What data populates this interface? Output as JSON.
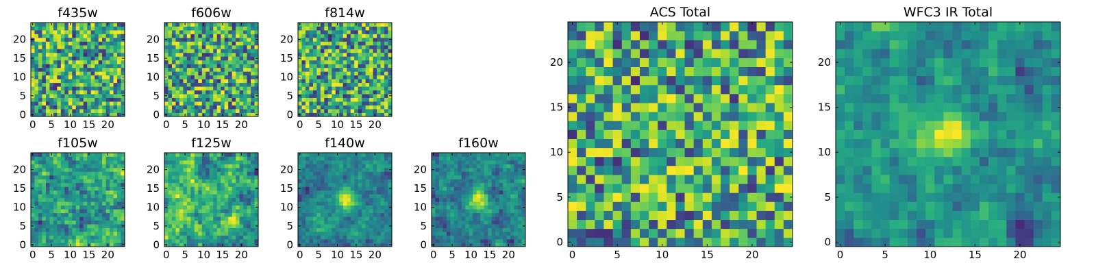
{
  "chart_data": [
    {
      "type": "heatmap",
      "title": "f435w",
      "xlim": [
        -0.5,
        24.5
      ],
      "ylim": [
        -0.5,
        24.5
      ],
      "xticks": [
        0,
        5,
        10,
        15,
        20
      ],
      "yticks": [
        0,
        5,
        10,
        15,
        20
      ],
      "colormap": "viridis",
      "pattern": "noise",
      "seed": 11
    },
    {
      "type": "heatmap",
      "title": "f606w",
      "xlim": [
        -0.5,
        24.5
      ],
      "ylim": [
        -0.5,
        24.5
      ],
      "xticks": [
        0,
        5,
        10,
        15,
        20
      ],
      "yticks": [
        0,
        5,
        10,
        15,
        20
      ],
      "colormap": "viridis",
      "pattern": "noise",
      "seed": 23
    },
    {
      "type": "heatmap",
      "title": "f814w",
      "xlim": [
        -0.5,
        24.5
      ],
      "ylim": [
        -0.5,
        24.5
      ],
      "xticks": [
        0,
        5,
        10,
        15,
        20
      ],
      "yticks": [
        0,
        5,
        10,
        15,
        20
      ],
      "colormap": "viridis",
      "pattern": "noise",
      "seed": 37
    },
    {
      "type": "heatmap",
      "title": "f105w",
      "xlim": [
        -0.5,
        24.5
      ],
      "ylim": [
        -0.5,
        24.5
      ],
      "xticks": [
        0,
        5,
        10,
        15,
        20
      ],
      "yticks": [
        0,
        5,
        10,
        15,
        20
      ],
      "colormap": "viridis",
      "pattern": "smooth",
      "seed": 41
    },
    {
      "type": "heatmap",
      "title": "f125w",
      "xlim": [
        -0.5,
        24.5
      ],
      "ylim": [
        -0.5,
        24.5
      ],
      "xticks": [
        0,
        5,
        10,
        15,
        20
      ],
      "yticks": [
        0,
        5,
        10,
        15,
        20
      ],
      "colormap": "viridis",
      "pattern": "smooth",
      "seed": 53
    },
    {
      "type": "heatmap",
      "title": "f140w",
      "xlim": [
        -0.5,
        24.5
      ],
      "ylim": [
        -0.5,
        24.5
      ],
      "xticks": [
        0,
        5,
        10,
        15,
        20
      ],
      "yticks": [
        0,
        5,
        10,
        15,
        20
      ],
      "colormap": "viridis",
      "pattern": "smooth",
      "seed": 67,
      "peak": [
        12,
        12
      ]
    },
    {
      "type": "heatmap",
      "title": "f160w",
      "xlim": [
        -0.5,
        24.5
      ],
      "ylim": [
        -0.5,
        24.5
      ],
      "xticks": [
        0,
        5,
        10,
        15,
        20
      ],
      "yticks": [
        0,
        5,
        10,
        15,
        20
      ],
      "colormap": "viridis",
      "pattern": "smooth",
      "seed": 79,
      "peak": [
        12,
        12
      ]
    },
    {
      "type": "heatmap",
      "title": "ACS Total",
      "xlim": [
        -0.5,
        24.5
      ],
      "ylim": [
        -0.5,
        24.5
      ],
      "xticks": [
        0,
        5,
        10,
        15,
        20
      ],
      "yticks": [
        0,
        5,
        10,
        15,
        20
      ],
      "colormap": "viridis",
      "pattern": "noise",
      "seed": 97
    },
    {
      "type": "heatmap",
      "title": "WFC3 IR Total",
      "xlim": [
        -0.5,
        24.5
      ],
      "ylim": [
        -0.5,
        24.5
      ],
      "xticks": [
        0,
        5,
        10,
        15,
        20
      ],
      "yticks": [
        0,
        5,
        10,
        15,
        20
      ],
      "colormap": "viridis",
      "pattern": "smooth",
      "seed": 131,
      "peak": [
        12,
        12
      ]
    }
  ]
}
